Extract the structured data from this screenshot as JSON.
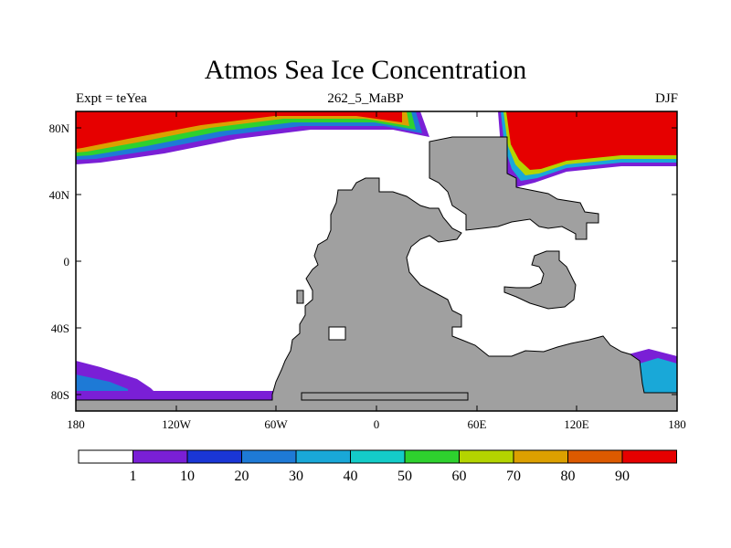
{
  "title": "Atmos Sea Ice Concentration",
  "subtitle_left": "Expt = teYea",
  "subtitle_center": "262_5_MaBP",
  "subtitle_right": "DJF",
  "axes": {
    "x_ticks": [
      "180",
      "120W",
      "60W",
      "0",
      "60E",
      "120E",
      "180"
    ],
    "y_ticks": [
      "80N",
      "40N",
      "0",
      "40S",
      "80S"
    ]
  },
  "colorbar": {
    "labels": [
      "1",
      "10",
      "20",
      "30",
      "40",
      "50",
      "60",
      "70",
      "80",
      "90"
    ],
    "colors": [
      "#ffffff",
      "#7a1fd6",
      "#1a36d6",
      "#1e7ad6",
      "#19a8d8",
      "#14ccc8",
      "#2ed12e",
      "#b4d400",
      "#dca000",
      "#dc5a00",
      "#e60000"
    ]
  },
  "map_colors": {
    "land": "#a0a0a0",
    "ocean": "#ffffff"
  }
}
